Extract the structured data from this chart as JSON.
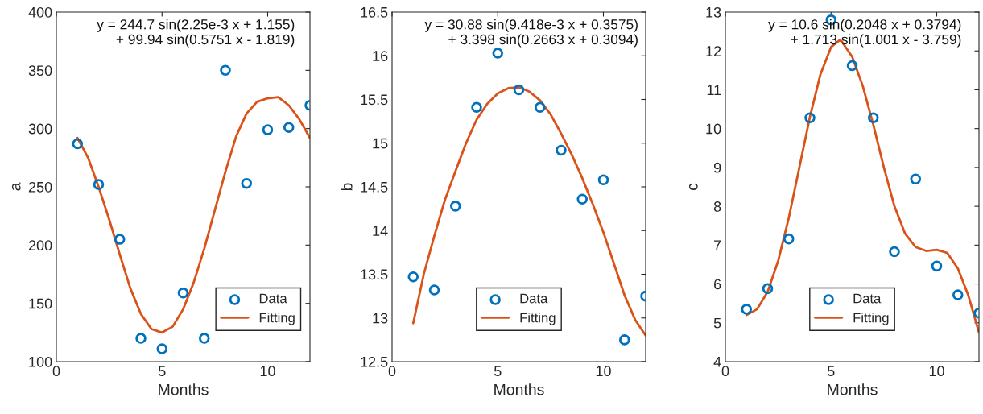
{
  "chart_data": [
    {
      "type": "scatter",
      "xlabel": "Months",
      "ylabel": "a",
      "xlim": [
        0,
        12
      ],
      "ylim": [
        100,
        400
      ],
      "xticks": [
        0,
        5,
        10
      ],
      "yticks": [
        100,
        150,
        200,
        250,
        300,
        350,
        400
      ],
      "legend": "bottom right",
      "annotations": [
        "y = 244.7 sin(2.25e-3 x + 1.155)\n+ 99.94 sin(0.5751 x - 1.819)"
      ],
      "series": [
        {
          "name": "Data",
          "marker": "circle",
          "color": "#0072bd",
          "x": [
            1,
            2,
            3,
            4,
            5,
            6,
            7,
            8,
            9,
            10,
            11,
            12
          ],
          "values": [
            287,
            252,
            205,
            120,
            111,
            159,
            120,
            350,
            253,
            299,
            301,
            320
          ]
        },
        {
          "name": "Fitting",
          "type": "line",
          "marker": "none",
          "line_style": "solid",
          "color": "#d95319",
          "x": [
            1,
            1.5,
            2,
            2.5,
            3,
            3.5,
            4,
            4.5,
            5,
            5.5,
            6,
            6.5,
            7,
            7.5,
            8,
            8.5,
            9,
            9.5,
            10,
            10.5,
            11,
            11.5,
            12
          ],
          "values": [
            292,
            275,
            250,
            222,
            192,
            163,
            141,
            128,
            125,
            130,
            145,
            168,
            197,
            230,
            263,
            293,
            313,
            323,
            326,
            327,
            320,
            308,
            292
          ]
        }
      ]
    },
    {
      "type": "scatter",
      "xlabel": "Months",
      "ylabel": "b",
      "xlim": [
        0,
        12
      ],
      "ylim": [
        12.5,
        16.5
      ],
      "xticks": [
        0,
        5,
        10
      ],
      "yticks": [
        12.5,
        13,
        13.5,
        14,
        14.5,
        15,
        15.5,
        16,
        16.5
      ],
      "legend": "bottom",
      "annotations": [
        "y = 30.88 sin(9.418e-3 x + 0.3575)\n+ 3.398 sin(0.2663 x + 0.3094)"
      ],
      "series": [
        {
          "name": "Data",
          "marker": "circle",
          "color": "#0072bd",
          "x": [
            1,
            2,
            3,
            4,
            5,
            6,
            7,
            8,
            9,
            10,
            11,
            12
          ],
          "values": [
            13.47,
            13.32,
            14.28,
            15.41,
            16.03,
            15.61,
            15.41,
            14.92,
            14.36,
            14.58,
            12.75,
            13.25
          ]
        },
        {
          "name": "Fitting",
          "type": "line",
          "marker": "none",
          "line_style": "solid",
          "color": "#d95319",
          "x": [
            1,
            1.5,
            2,
            2.5,
            3,
            3.5,
            4,
            4.5,
            5,
            5.5,
            6,
            6.5,
            7,
            7.5,
            8,
            8.5,
            9,
            9.5,
            10,
            10.5,
            11,
            11.5,
            12
          ],
          "values": [
            12.94,
            13.5,
            13.94,
            14.35,
            14.68,
            15.0,
            15.27,
            15.45,
            15.57,
            15.63,
            15.64,
            15.59,
            15.49,
            15.33,
            15.11,
            14.87,
            14.6,
            14.3,
            13.98,
            13.62,
            13.26,
            12.98,
            12.8
          ]
        }
      ]
    },
    {
      "type": "scatter",
      "xlabel": "Months",
      "ylabel": "c",
      "xlim": [
        0,
        12
      ],
      "ylim": [
        4,
        13
      ],
      "xticks": [
        0,
        5,
        10
      ],
      "yticks": [
        4,
        5,
        6,
        7,
        8,
        9,
        10,
        11,
        12,
        13
      ],
      "legend": "bottom",
      "annotations": [
        "y = 10.6 sin(0.2048 x + 0.3794)\n+ 1.713 sin(1.001 x - 3.759)"
      ],
      "series": [
        {
          "name": "Data",
          "marker": "circle",
          "color": "#0072bd",
          "x": [
            1,
            2,
            3,
            4,
            5,
            6,
            7,
            8,
            9,
            10,
            11,
            12
          ],
          "values": [
            5.35,
            5.88,
            7.16,
            10.28,
            12.8,
            11.62,
            10.28,
            6.83,
            8.7,
            6.46,
            5.72,
            5.25
          ]
        },
        {
          "name": "Fitting",
          "type": "line",
          "marker": "none",
          "line_style": "solid",
          "color": "#d95319",
          "x": [
            1,
            1.5,
            2,
            2.5,
            3,
            3.5,
            4,
            4.5,
            5,
            5.4,
            5.5,
            6,
            6.5,
            7,
            7.5,
            8,
            8.5,
            9,
            9.5,
            10,
            10.5,
            11,
            11.5,
            12
          ],
          "values": [
            5.2,
            5.35,
            5.8,
            6.6,
            7.7,
            9.0,
            10.3,
            11.4,
            12.1,
            12.27,
            12.25,
            11.85,
            11.1,
            10.1,
            9.0,
            8.0,
            7.3,
            6.95,
            6.85,
            6.88,
            6.8,
            6.4,
            5.7,
            4.75
          ]
        }
      ]
    }
  ]
}
